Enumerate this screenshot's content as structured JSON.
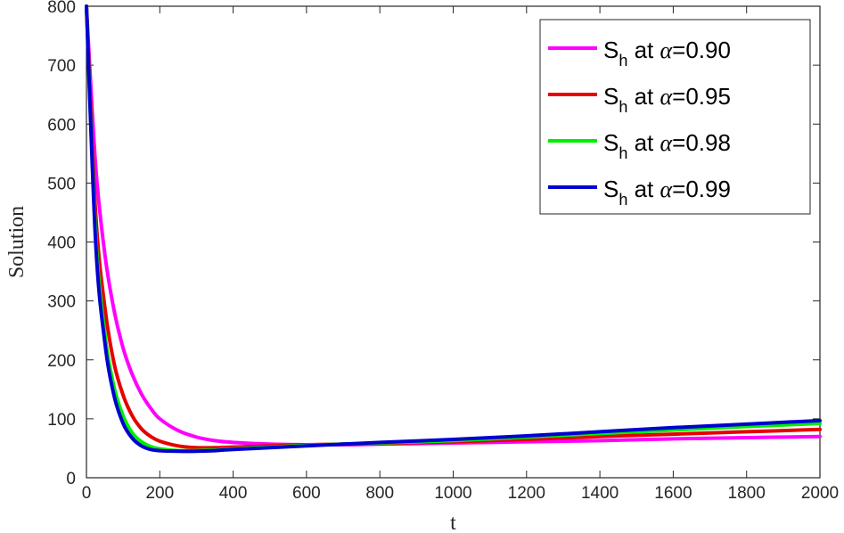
{
  "chart_data": {
    "type": "line",
    "title": "",
    "xlabel": "t",
    "ylabel": "Solution",
    "xlim": [
      0,
      2000
    ],
    "ylim": [
      0,
      800
    ],
    "xticks": [
      0,
      200,
      400,
      600,
      800,
      1000,
      1200,
      1400,
      1600,
      1800,
      2000
    ],
    "yticks": [
      0,
      100,
      200,
      300,
      400,
      500,
      600,
      700,
      800
    ],
    "grid": false,
    "legend_position": "top-right",
    "x": [
      0,
      25,
      50,
      75,
      100,
      125,
      150,
      175,
      200,
      250,
      300,
      350,
      400,
      500,
      600,
      700,
      800,
      1000,
      1200,
      1400,
      1600,
      1800,
      2000
    ],
    "series": [
      {
        "name": "S_h at α=0.90",
        "legend": {
          "main": "S",
          "sub": "h",
          "mid": " at ",
          "alpha": "α",
          "value": "=0.90"
        },
        "color": "#ff00ff",
        "values": [
          800,
          530,
          380,
          285,
          220,
          175,
          142,
          118,
          100,
          80,
          69,
          63,
          60,
          57,
          56,
          56,
          57,
          59,
          61,
          63,
          66,
          68,
          70
        ]
      },
      {
        "name": "S_h at α=0.95",
        "legend": {
          "main": "S",
          "sub": "h",
          "mid": " at ",
          "alpha": "α",
          "value": "=0.95"
        },
        "color": "#e60000",
        "values": [
          800,
          450,
          290,
          195,
          140,
          105,
          83,
          70,
          62,
          54,
          51,
          51,
          52,
          54,
          56,
          57,
          58,
          61,
          65,
          70,
          74,
          78,
          82
        ]
      },
      {
        "name": "S_h at α=0.98",
        "legend": {
          "main": "S",
          "sub": "h",
          "mid": " at ",
          "alpha": "α",
          "value": "=0.98"
        },
        "color": "#00ee00",
        "values": [
          800,
          415,
          245,
          155,
          105,
          76,
          61,
          53,
          49,
          46,
          46,
          47,
          49,
          52,
          55,
          57,
          59,
          63,
          69,
          75,
          81,
          87,
          92
        ]
      },
      {
        "name": "S_h at α=0.99",
        "legend": {
          "main": "S",
          "sub": "h",
          "mid": " at ",
          "alpha": "α",
          "value": "=0.99"
        },
        "color": "#0000d0",
        "values": [
          800,
          400,
          230,
          140,
          92,
          67,
          54,
          48,
          46,
          45,
          45,
          46,
          48,
          51,
          54,
          57,
          60,
          65,
          71,
          78,
          85,
          91,
          97
        ]
      }
    ]
  }
}
